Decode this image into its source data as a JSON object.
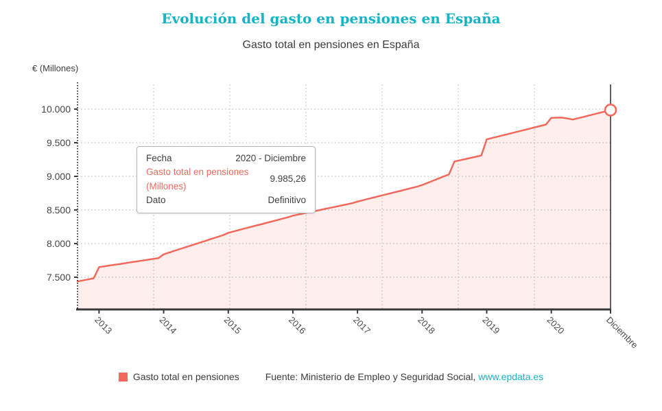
{
  "title": "Evolución del gasto en pensiones en España",
  "subtitle": "Gasto total en pensiones en España",
  "y_axis_label": "€ (Millones)",
  "tooltip": {
    "rows": [
      {
        "label": "Fecha",
        "value": "2020 - Diciembre"
      },
      {
        "label": "Gasto total en pensiones (Millones)",
        "value": "9.985,26"
      },
      {
        "label": "Dato",
        "value": "Definitivo"
      }
    ]
  },
  "legend": {
    "label": "Gasto total en pensiones"
  },
  "source": {
    "prefix": "Fuente: Ministerio de Empleo y Seguridad Social, ",
    "link": "www.epdata.es"
  },
  "colors": {
    "accent_teal": "#14b4c6",
    "series_salmon": "#f2695c",
    "area_fill": "rgba(242,105,92,0.11)",
    "grid": "#d6d6d6",
    "axis": "#3a3a3a",
    "crosshair": "#4d4d4d",
    "tick_text": "#454545"
  },
  "chart_data": {
    "type": "area",
    "title": "Gasto total en pensiones en España",
    "xlabel": "",
    "ylabel": "€ (Millones)",
    "frequency": "monthly",
    "x_start": "2012-09",
    "x_end": "2020-12",
    "grid": true,
    "legend_position": "bottom",
    "ylim": [
      7030,
      10400
    ],
    "y_ticks": [
      {
        "value": 10000,
        "label": "10.000"
      },
      {
        "value": 9500,
        "label": "9.500"
      },
      {
        "value": 9000,
        "label": "9.000"
      },
      {
        "value": 8500,
        "label": "8.500"
      },
      {
        "value": 8000,
        "label": "8.000"
      },
      {
        "value": 7500,
        "label": "7.500"
      }
    ],
    "x_ticks": [
      {
        "index": 4,
        "label": "2013"
      },
      {
        "index": 16,
        "label": "2014"
      },
      {
        "index": 28,
        "label": "2015"
      },
      {
        "index": 40,
        "label": "2016"
      },
      {
        "index": 52,
        "label": "2017"
      },
      {
        "index": 64,
        "label": "2018"
      },
      {
        "index": 76,
        "label": "2019"
      },
      {
        "index": 88,
        "label": "2020"
      },
      {
        "index": 99,
        "label": "Diciembre"
      }
    ],
    "series": [
      {
        "name": "Gasto total en pensiones",
        "values": [
          7437,
          7452,
          7468,
          7483,
          7650,
          7662,
          7674,
          7686,
          7698,
          7710,
          7723,
          7735,
          7747,
          7759,
          7771,
          7783,
          7840,
          7866,
          7892,
          7918,
          7944,
          7970,
          7996,
          8021,
          8047,
          8073,
          8099,
          8125,
          8160,
          8181,
          8202,
          8223,
          8244,
          8265,
          8285,
          8306,
          8327,
          8348,
          8369,
          8390,
          8415,
          8432,
          8449,
          8465,
          8482,
          8499,
          8516,
          8533,
          8549,
          8566,
          8583,
          8600,
          8625,
          8645,
          8665,
          8685,
          8705,
          8725,
          8745,
          8765,
          8785,
          8805,
          8825,
          8845,
          8870,
          8902,
          8934,
          8966,
          8998,
          9030,
          9220,
          9238,
          9256,
          9274,
          9292,
          9310,
          9550,
          9570,
          9590,
          9610,
          9630,
          9650,
          9670,
          9690,
          9710,
          9730,
          9750,
          9770,
          9870,
          9872,
          9873,
          9860,
          9845,
          9865,
          9885,
          9905,
          9925,
          9945,
          9965,
          9985.26
        ]
      }
    ],
    "highlight": {
      "index": 99,
      "x_label": "2020 - Diciembre",
      "value": 9985.26,
      "marker": "open-circle"
    }
  }
}
